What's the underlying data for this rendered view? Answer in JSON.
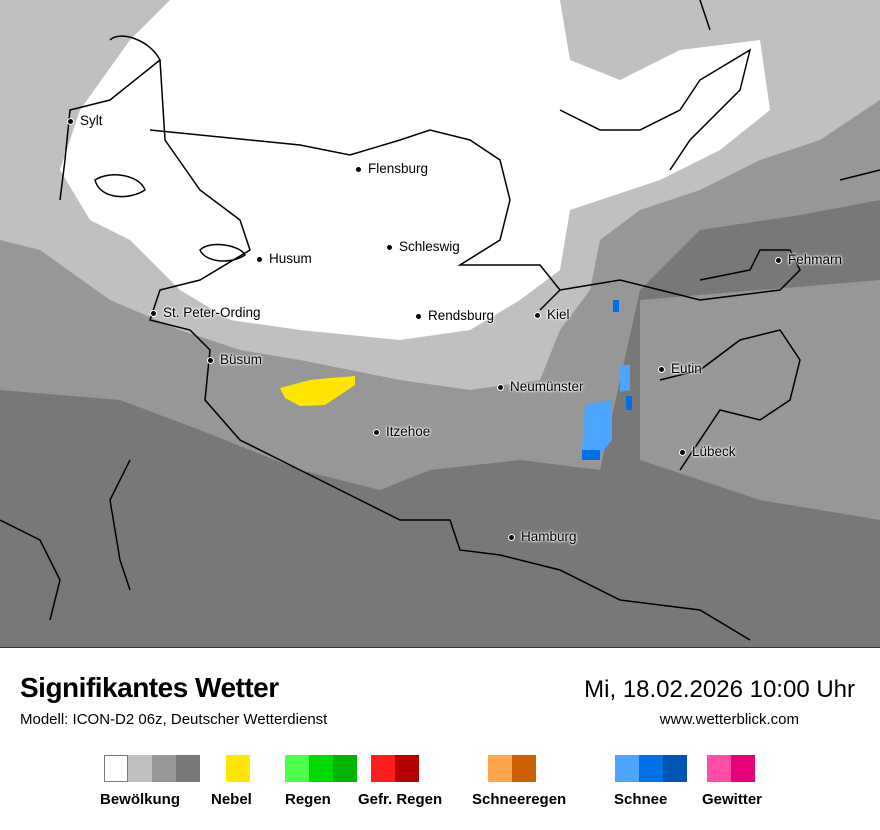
{
  "map": {
    "cities": [
      {
        "name": "Sylt"
      },
      {
        "name": "Flensburg"
      },
      {
        "name": "Husum"
      },
      {
        "name": "Schleswig"
      },
      {
        "name": "St. Peter-Ording"
      },
      {
        "name": "Rendsburg"
      },
      {
        "name": "Kiel"
      },
      {
        "name": "Fehmarn"
      },
      {
        "name": "Büsum"
      },
      {
        "name": "Eutin"
      },
      {
        "name": "Neumünster"
      },
      {
        "name": "Itzehoe"
      },
      {
        "name": "Lübeck"
      },
      {
        "name": "Hamburg"
      }
    ]
  },
  "footer": {
    "title": "Signifikantes Wetter",
    "subtitle": "Modell: ICON-D2 06z, Deutscher Wetterdienst",
    "datetime": "Mi, 18.02.2026 10:00 Uhr",
    "website": "www.wetterblick.com"
  },
  "legend": [
    {
      "label": "Bewölkung",
      "colors": [
        "#ffffff",
        "#c0c0c0",
        "#979797",
        "#787878"
      ]
    },
    {
      "label": "Nebel",
      "colors": [
        "#ffe600"
      ]
    },
    {
      "label": "Regen",
      "colors": [
        "#4cff4c",
        "#00dc00",
        "#00b400"
      ]
    },
    {
      "label": "Gefr. Regen",
      "colors": [
        "#ff1c1c",
        "#b40000"
      ]
    },
    {
      "label": "Schneeregen",
      "colors": [
        "#ffa54c",
        "#cd6000"
      ]
    },
    {
      "label": "Schnee",
      "colors": [
        "#4ca5ff",
        "#0070e6",
        "#0055b4"
      ]
    },
    {
      "label": "Gewitter",
      "colors": [
        "#ff4ca5",
        "#e6007a"
      ]
    }
  ]
}
